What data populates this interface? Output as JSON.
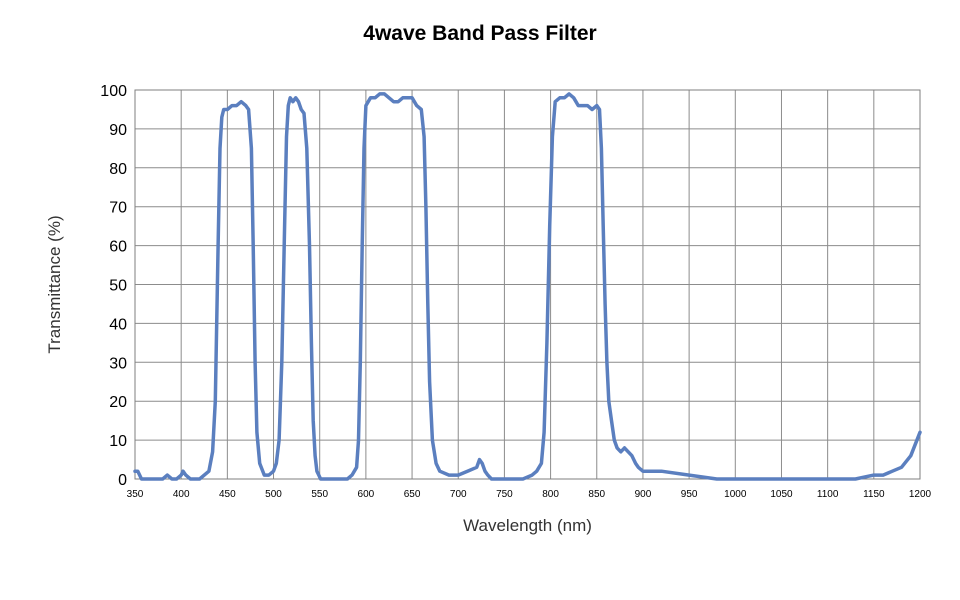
{
  "chart_data": {
    "type": "line",
    "title": "4wave Band Pass Filter",
    "xlabel": "Wavelength  (nm)",
    "ylabel": "Transmittance  (%)",
    "xlim": [
      350,
      1200
    ],
    "ylim": [
      0,
      100
    ],
    "x_ticks": [
      350,
      400,
      450,
      500,
      550,
      600,
      650,
      700,
      750,
      800,
      850,
      900,
      950,
      1000,
      1050,
      1100,
      1150,
      1200
    ],
    "y_ticks": [
      0,
      10,
      20,
      30,
      40,
      50,
      60,
      70,
      80,
      90,
      100
    ],
    "grid": true,
    "line_color": "#5b7fbf",
    "series": [
      {
        "x": [
          350,
          353,
          357,
          362,
          370,
          380,
          385,
          390,
          395,
          400,
          402,
          405,
          410,
          420,
          430,
          434,
          437,
          440,
          442,
          444,
          446,
          450,
          455,
          460,
          465,
          470,
          473,
          476,
          478,
          480,
          482,
          485,
          490,
          495,
          500,
          503,
          506,
          509,
          512,
          514,
          516,
          518,
          521,
          524,
          527,
          530,
          533,
          536,
          539,
          541,
          543,
          545,
          547,
          549,
          551,
          555,
          560,
          570,
          580,
          585,
          590,
          592,
          594,
          596,
          598,
          600,
          605,
          610,
          615,
          620,
          625,
          630,
          635,
          640,
          645,
          650,
          655,
          660,
          663,
          665,
          667,
          669,
          672,
          676,
          680,
          690,
          700,
          710,
          720,
          723,
          726,
          729,
          732,
          736,
          740,
          750,
          760,
          770,
          780,
          785,
          790,
          793,
          796,
          799,
          802,
          805,
          810,
          815,
          820,
          825,
          830,
          835,
          840,
          845,
          850,
          853,
          855,
          857,
          859,
          861,
          863,
          866,
          869,
          872,
          876,
          880,
          884,
          888,
          892,
          895,
          900,
          920,
          950,
          980,
          1000,
          1050,
          1100,
          1130,
          1150,
          1160,
          1170,
          1180,
          1190,
          1200
        ],
        "y": [
          2,
          2,
          0,
          0,
          0,
          0,
          1,
          0,
          0,
          1,
          2,
          1,
          0,
          0,
          2,
          7,
          20,
          60,
          85,
          93,
          95,
          95,
          96,
          96,
          97,
          96,
          95,
          85,
          60,
          30,
          12,
          4,
          1,
          1,
          2,
          4,
          10,
          30,
          65,
          88,
          96,
          98,
          97,
          98,
          97,
          95,
          94,
          85,
          60,
          35,
          15,
          6,
          2,
          1,
          0,
          0,
          0,
          0,
          0,
          1,
          3,
          10,
          30,
          60,
          85,
          96,
          98,
          98,
          99,
          99,
          98,
          97,
          97,
          98,
          98,
          98,
          96,
          95,
          88,
          70,
          45,
          25,
          10,
          4,
          2,
          1,
          1,
          2,
          3,
          5,
          4,
          2,
          1,
          0,
          0,
          0,
          0,
          0,
          1,
          2,
          4,
          12,
          35,
          65,
          88,
          97,
          98,
          98,
          99,
          98,
          96,
          96,
          96,
          95,
          96,
          95,
          85,
          65,
          45,
          30,
          20,
          15,
          10,
          8,
          7,
          8,
          7,
          6,
          4,
          3,
          2,
          2,
          1,
          0,
          0,
          0,
          0,
          0,
          1,
          1,
          2,
          3,
          6,
          12
        ]
      }
    ]
  }
}
